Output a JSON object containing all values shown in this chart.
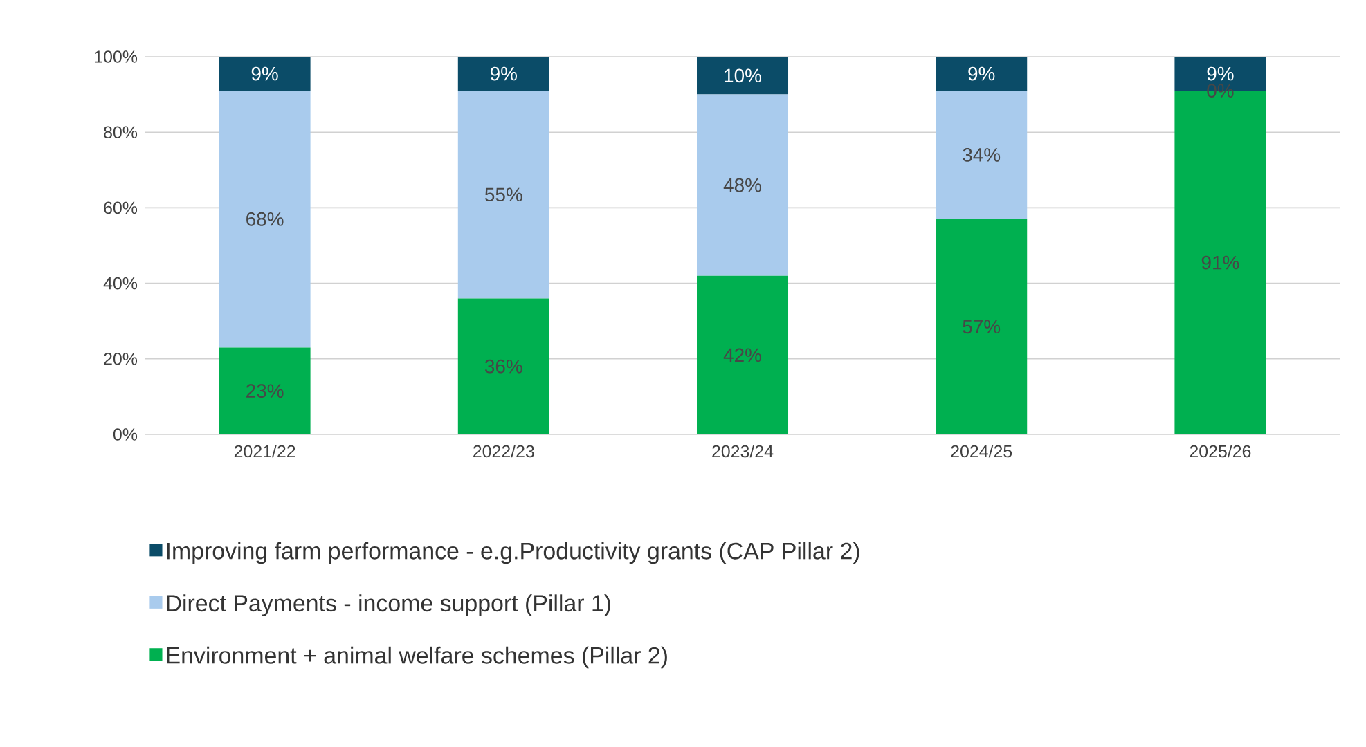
{
  "chart_data": {
    "type": "bar",
    "stacked": true,
    "categories": [
      "2021/22",
      "2022/23",
      "2023/24",
      "2024/25",
      "2025/26"
    ],
    "series": [
      {
        "name": "Environment + animal welfare schemes (Pillar 2)",
        "color": "#00b050",
        "values": [
          23,
          36,
          42,
          57,
          91
        ],
        "value_labels": [
          "23%",
          "36%",
          "42%",
          "57%",
          "91%"
        ]
      },
      {
        "name": "Direct Payments - income support (Pillar 1)",
        "color": "#a9cbed",
        "values": [
          68,
          55,
          48,
          34,
          0
        ],
        "value_labels": [
          "68%",
          "55%",
          "48%",
          "34%",
          "0%"
        ]
      },
      {
        "name": "Improving farm performance - e.g.Productivity grants (CAP Pillar 2)",
        "color": "#0b4c68",
        "values": [
          9,
          9,
          10,
          9,
          9
        ],
        "value_labels": [
          "9%",
          "9%",
          "10%",
          "9%",
          "9%"
        ]
      }
    ],
    "ylim": [
      0,
      100
    ],
    "yticks": [
      {
        "value": 0,
        "label": "0%"
      },
      {
        "value": 20,
        "label": "20%"
      },
      {
        "value": 40,
        "label": "40%"
      },
      {
        "value": 60,
        "label": "60%"
      },
      {
        "value": 80,
        "label": "80%"
      },
      {
        "value": 100,
        "label": "100%"
      }
    ],
    "grid": "y",
    "legend": "bottom"
  }
}
